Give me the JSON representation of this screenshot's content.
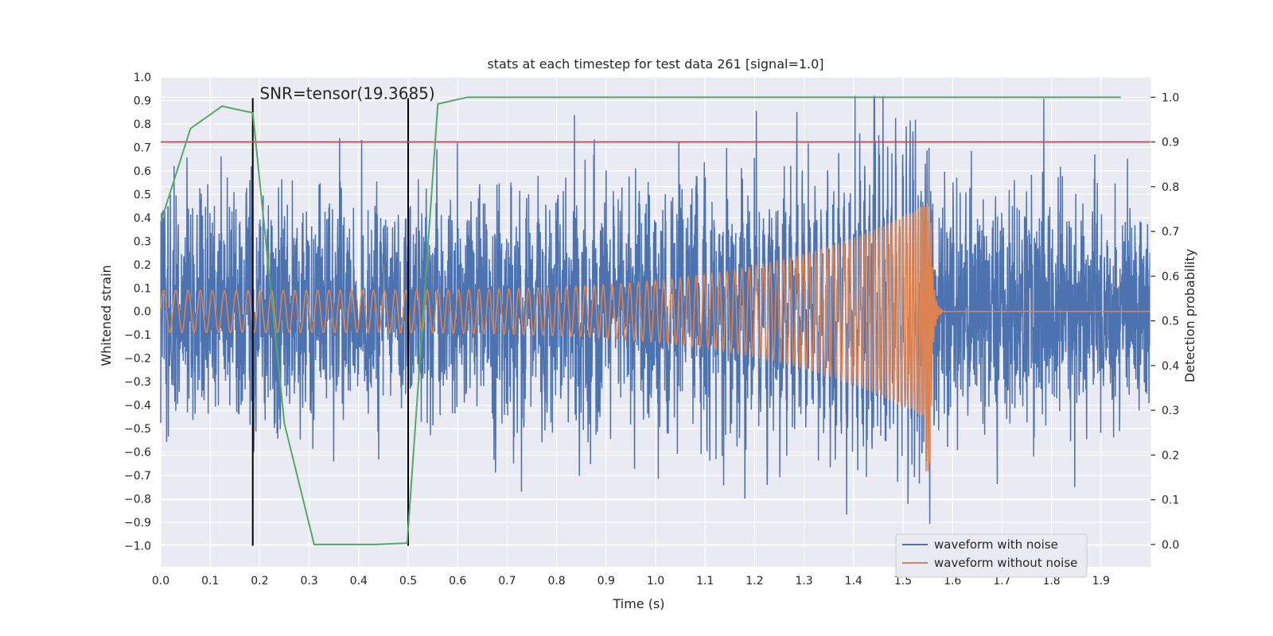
{
  "chart_data": {
    "type": "line",
    "title": "stats at each timestep for test data 261 [signal=1.0]",
    "xlabel": "Time (s)",
    "ylabel": "Whitened strain",
    "y2label": "Detection probability",
    "xlim": [
      0.0,
      2.0
    ],
    "ylim": [
      -1.09,
      1.0
    ],
    "y2lim": [
      -0.05,
      1.045
    ],
    "x_ticks": [
      0.0,
      0.1,
      0.2,
      0.3,
      0.4,
      0.5,
      0.6,
      0.7,
      0.8,
      0.9,
      1.0,
      1.1,
      1.2,
      1.3,
      1.4,
      1.5,
      1.6,
      1.7,
      1.8,
      1.9
    ],
    "x_tick_labels": [
      "0.0",
      "0.1",
      "0.2",
      "0.3",
      "0.4",
      "0.5",
      "0.6",
      "0.7",
      "0.8",
      "0.9",
      "1.0",
      "1.1",
      "1.2",
      "1.3",
      "1.4",
      "1.5",
      "1.6",
      "1.7",
      "1.8",
      "1.9"
    ],
    "y_ticks": [
      1.0,
      0.9,
      0.8,
      0.7,
      0.6,
      0.5,
      0.4,
      0.3,
      0.2,
      0.1,
      0.0,
      -0.1,
      -0.2,
      -0.3,
      -0.4,
      -0.5,
      -0.6,
      -0.7,
      -0.8,
      -0.9,
      -1.0
    ],
    "y_tick_labels": [
      "1.0",
      "0.9",
      "0.8",
      "0.7",
      "0.6",
      "0.5",
      "0.4",
      "0.3",
      "0.2",
      "0.1",
      "0.0",
      "−0.1",
      "−0.2",
      "−0.3",
      "−0.4",
      "−0.5",
      "−0.6",
      "−0.7",
      "−0.8",
      "−0.9",
      "−1.0"
    ],
    "y2_ticks": [
      1.0,
      0.9,
      0.8,
      0.7,
      0.6,
      0.5,
      0.4,
      0.3,
      0.2,
      0.1,
      0.0
    ],
    "y2_tick_labels": [
      "1.0",
      "0.9",
      "0.8",
      "0.7",
      "0.6",
      "0.5",
      "0.4",
      "0.3",
      "0.2",
      "0.1",
      "0.0"
    ],
    "series": [
      {
        "name": "waveform with noise",
        "color": "#4c72b0",
        "axis": "left",
        "description": "noisy whitened strain, approx. ±0.3 with spikes up to 0.9 and down to −1.0",
        "seed": 261,
        "noise_sigma": 0.24
      },
      {
        "name": "waveform without noise",
        "color": "#dd8452",
        "axis": "left",
        "description": "chirp signal, amplitude grows from 0.09 to 0.47, merger near 1.555 s, ringdown until ~1.58 s",
        "amp_start": 0.09,
        "amp_peak": 0.47,
        "amp_trough": -0.7,
        "merger_time": 1.555,
        "end_time": 1.58,
        "freq_start_hz": 40,
        "freq_end_hz": 260
      },
      {
        "name": "detection probability",
        "color": "#55a868",
        "axis": "right",
        "x": [
          0.0,
          0.06,
          0.124,
          0.186,
          0.25,
          0.31,
          0.434,
          0.498,
          0.56,
          0.62,
          0.68,
          1.0,
          1.5,
          1.94
        ],
        "values": [
          0.72,
          0.93,
          0.98,
          0.965,
          0.27,
          0.0,
          0.0,
          0.003,
          0.985,
          1.0,
          1.0,
          1.0,
          1.0,
          1.0
        ]
      }
    ],
    "threshold_line": {
      "value": 0.9,
      "axis": "right",
      "color": "#c44e52"
    },
    "vertical_markers": [
      {
        "x": 0.186,
        "y_from": -1.0,
        "y_to": 0.91,
        "color": "#000000"
      },
      {
        "x": 0.5,
        "y_from": -1.0,
        "y_to": 0.91,
        "color": "#000000"
      }
    ],
    "annotation": {
      "text": "SNR=tensor(19.3685)",
      "x": 0.2,
      "y": 0.91
    },
    "legend": {
      "position": "bottom-right",
      "entries": [
        "waveform with noise",
        "waveform without noise"
      ]
    }
  }
}
